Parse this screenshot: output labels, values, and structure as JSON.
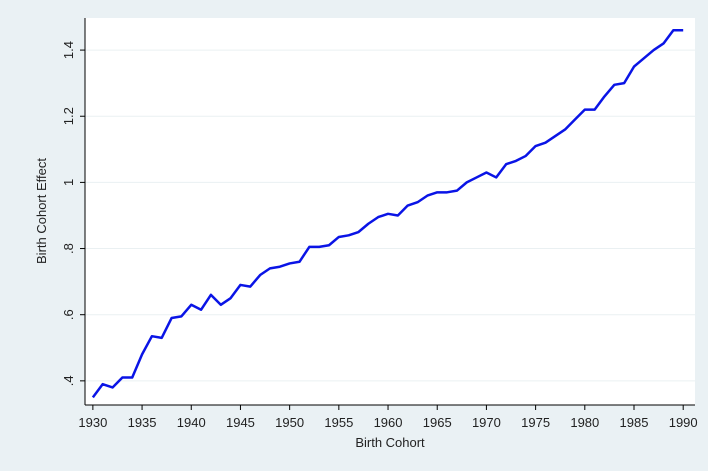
{
  "chart_data": {
    "type": "line",
    "x_label": "Birth Cohort",
    "y_label": "Birth Cohort Effect",
    "x": [
      1930,
      1931,
      1932,
      1933,
      1934,
      1935,
      1936,
      1937,
      1938,
      1939,
      1940,
      1941,
      1942,
      1943,
      1944,
      1945,
      1946,
      1947,
      1948,
      1949,
      1950,
      1951,
      1952,
      1953,
      1954,
      1955,
      1956,
      1957,
      1958,
      1959,
      1960,
      1961,
      1962,
      1963,
      1964,
      1965,
      1966,
      1967,
      1968,
      1969,
      1970,
      1971,
      1972,
      1973,
      1974,
      1975,
      1976,
      1977,
      1978,
      1979,
      1980,
      1981,
      1982,
      1983,
      1984,
      1985,
      1986,
      1987,
      1988,
      1989,
      1990
    ],
    "values": [
      0.35,
      0.39,
      0.38,
      0.41,
      0.41,
      0.48,
      0.535,
      0.53,
      0.59,
      0.595,
      0.63,
      0.615,
      0.66,
      0.63,
      0.65,
      0.69,
      0.685,
      0.72,
      0.74,
      0.745,
      0.755,
      0.76,
      0.805,
      0.805,
      0.81,
      0.835,
      0.84,
      0.85,
      0.875,
      0.895,
      0.905,
      0.9,
      0.93,
      0.94,
      0.96,
      0.97,
      0.97,
      0.975,
      1.0,
      1.015,
      1.03,
      1.015,
      1.055,
      1.065,
      1.08,
      1.11,
      1.12,
      1.14,
      1.16,
      1.19,
      1.22,
      1.22,
      1.26,
      1.295,
      1.3,
      1.35,
      1.375,
      1.4,
      1.42,
      1.46,
      1.46
    ],
    "color": "#0a14e6",
    "xlim": [
      1929.2,
      1991.2
    ],
    "xticks": [
      1930,
      1935,
      1940,
      1945,
      1950,
      1955,
      1960,
      1965,
      1970,
      1975,
      1980,
      1985,
      1990
    ],
    "ylim": [
      0.327,
      1.497
    ],
    "yticks": [
      {
        "value": 0.4,
        "label": ".4"
      },
      {
        "value": 0.6,
        "label": ".6"
      },
      {
        "value": 0.8,
        "label": ".8"
      },
      1,
      1.2,
      1.4
    ],
    "grid": true
  }
}
